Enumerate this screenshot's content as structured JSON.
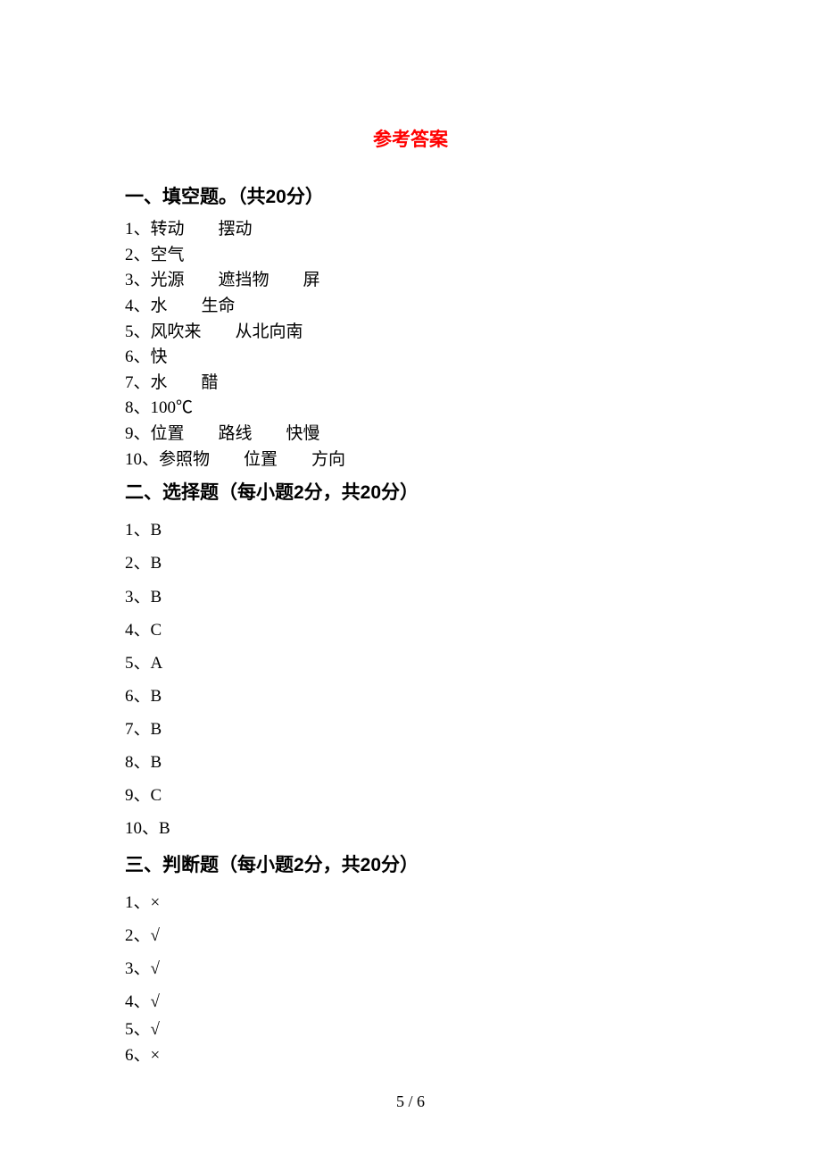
{
  "title": "参考答案",
  "sections": {
    "s1": {
      "heading": "一、填空题。（共20分）",
      "items": [
        "1、转动　　摆动",
        "2、空气",
        "3、光源　　遮挡物　　屏",
        "4、水　　生命",
        "5、风吹来　　从北向南",
        "6、快",
        "7、水　　醋",
        "8、100℃",
        "9、位置　　路线　　快慢",
        "10、参照物　　位置　　方向"
      ]
    },
    "s2": {
      "heading": "二、选择题（每小题2分，共20分）",
      "items": [
        "1、B",
        "2、B",
        "3、B",
        "4、C",
        "5、A",
        "6、B",
        "7、B",
        "8、B",
        "9、C",
        "10、B"
      ]
    },
    "s3": {
      "heading": "三、判断题（每小题2分，共20分）",
      "items": [
        "1、×",
        "2、√",
        "3、√",
        "4、√",
        "5、√",
        "6、×"
      ]
    }
  },
  "footer": "5 / 6"
}
